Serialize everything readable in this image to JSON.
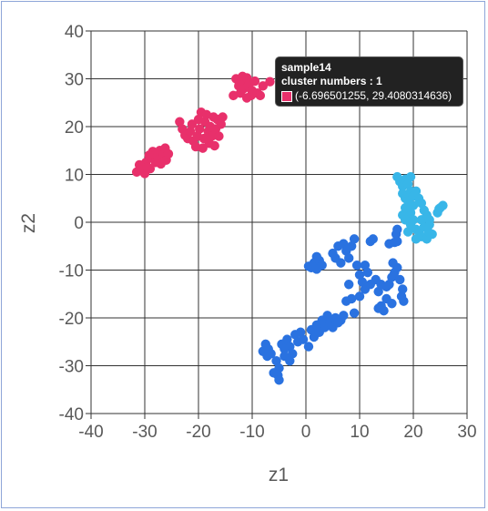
{
  "chart_data": {
    "type": "scatter",
    "xlabel": "z1",
    "ylabel": "z2",
    "xlim": [
      -40,
      30
    ],
    "ylim": [
      -40,
      40
    ],
    "xticks": [
      -40,
      -30,
      -20,
      -10,
      0,
      10,
      20,
      30
    ],
    "yticks": [
      -40,
      -30,
      -20,
      -10,
      0,
      10,
      20,
      30,
      40
    ],
    "grid": true,
    "series": [
      {
        "color": "#e8306b",
        "points": [
          [
            -31.5,
            10.5
          ],
          [
            -31,
            12
          ],
          [
            -30.5,
            11
          ],
          [
            -30,
            10.2
          ],
          [
            -29.8,
            12.5
          ],
          [
            -29.5,
            11.5
          ],
          [
            -29,
            11.2
          ],
          [
            -28.8,
            13.5
          ],
          [
            -28.5,
            14.8
          ],
          [
            -28,
            12.5
          ],
          [
            -27.6,
            13.6
          ],
          [
            -27.2,
            15
          ],
          [
            -27,
            12.2
          ],
          [
            -26.5,
            14.2
          ],
          [
            -26.2,
            15.5
          ],
          [
            -26,
            13
          ],
          [
            -25.6,
            14.3
          ],
          [
            -29.2,
            14
          ],
          [
            -23.5,
            21
          ],
          [
            -23,
            19.5
          ],
          [
            -22.5,
            18.2
          ],
          [
            -22,
            17.5
          ],
          [
            -21.5,
            19
          ],
          [
            -21.2,
            20.5
          ],
          [
            -21,
            17
          ],
          [
            -20.5,
            15.8
          ],
          [
            -20.2,
            18
          ],
          [
            -19.8,
            19.5
          ],
          [
            -19.5,
            23
          ],
          [
            -19.2,
            15.5
          ],
          [
            -19,
            17.5
          ],
          [
            -18.8,
            21
          ],
          [
            -18.5,
            22.5
          ],
          [
            -18.2,
            19
          ],
          [
            -18,
            16.5
          ],
          [
            -17.8,
            20
          ],
          [
            -17.5,
            18
          ],
          [
            -17.2,
            22
          ],
          [
            -17,
            16
          ],
          [
            -16.8,
            19.5
          ],
          [
            -16.5,
            21.5
          ],
          [
            -16.2,
            18
          ],
          [
            -15.8,
            20.5
          ],
          [
            -15.5,
            22
          ],
          [
            -18.5,
            17.5
          ],
          [
            -20,
            21.5
          ],
          [
            -13,
            30
          ],
          [
            -12.5,
            28.5
          ],
          [
            -12.2,
            27
          ],
          [
            -12,
            29.5
          ],
          [
            -11.8,
            30.5
          ],
          [
            -11.5,
            28
          ],
          [
            -11,
            30.2
          ],
          [
            -10.8,
            28.5
          ],
          [
            -10.5,
            29
          ],
          [
            -10.2,
            26.5
          ],
          [
            -10,
            27.5
          ],
          [
            -9.5,
            29.5
          ],
          [
            -9,
            27
          ],
          [
            -8.5,
            26.5
          ],
          [
            -8,
            28.5
          ],
          [
            -13.5,
            26.5
          ],
          [
            -11,
            26
          ],
          [
            -6.7,
            29.4
          ]
        ]
      },
      {
        "color": "#2a72e0",
        "points": [
          [
            -8,
            -27
          ],
          [
            -7.5,
            -25.5
          ],
          [
            -7.2,
            -28
          ],
          [
            -7,
            -26.5
          ],
          [
            -6.5,
            -27.5
          ],
          [
            -5.5,
            -29
          ],
          [
            -5,
            -30.5
          ],
          [
            -5.2,
            -32
          ],
          [
            -5,
            -33
          ],
          [
            -4.5,
            -25.5
          ],
          [
            -4,
            -28
          ],
          [
            -3.5,
            -24.5
          ],
          [
            -3,
            -26
          ],
          [
            -2.5,
            -27.5
          ],
          [
            -2,
            -23.5
          ],
          [
            -1.5,
            -25
          ],
          [
            -1,
            -23
          ],
          [
            -0.5,
            -24.5
          ],
          [
            0.5,
            -26
          ],
          [
            1,
            -22.5
          ],
          [
            1.5,
            -24
          ],
          [
            2,
            -21.5
          ],
          [
            2.5,
            -23
          ],
          [
            3,
            -20.5
          ],
          [
            3.5,
            -22
          ],
          [
            4,
            -19.5
          ],
          [
            4.5,
            -21
          ],
          [
            5,
            -22
          ],
          [
            5.5,
            -20
          ],
          [
            6,
            -21
          ],
          [
            6.5,
            -20.5
          ],
          [
            7,
            -19.5
          ],
          [
            -4,
            -26.5
          ],
          [
            -3,
            -29
          ],
          [
            -6,
            -31.5
          ],
          [
            0.5,
            -9.2
          ],
          [
            1,
            -9.5
          ],
          [
            1.5,
            -8.5
          ],
          [
            2,
            -9.8
          ],
          [
            2.5,
            -8
          ],
          [
            2,
            -7.2
          ],
          [
            3,
            -9
          ],
          [
            5,
            -6.5
          ],
          [
            5.5,
            -7.5
          ],
          [
            6,
            -5
          ],
          [
            6.5,
            -8.5
          ],
          [
            7,
            -4.5
          ],
          [
            7.5,
            -6
          ],
          [
            8,
            -7.5
          ],
          [
            8.5,
            -5
          ],
          [
            9,
            -3.5
          ],
          [
            9.5,
            -9
          ],
          [
            10,
            -11
          ],
          [
            10.5,
            -12.5
          ],
          [
            11,
            -14
          ],
          [
            11.5,
            -10.5
          ],
          [
            12,
            -4
          ],
          [
            12.5,
            -3.5
          ],
          [
            13,
            -12
          ],
          [
            13.5,
            -14.5
          ],
          [
            14,
            -17.5
          ],
          [
            14.5,
            -18.5
          ],
          [
            15,
            -16
          ],
          [
            15.5,
            -13
          ],
          [
            16,
            -11.5
          ],
          [
            16.5,
            -10.5
          ],
          [
            17,
            -9.5
          ],
          [
            17.5,
            -12
          ],
          [
            18,
            -14
          ],
          [
            18.2,
            -16.5
          ],
          [
            17.8,
            -15.5
          ],
          [
            16.2,
            -8.5
          ],
          [
            15.5,
            -4.5
          ],
          [
            16.5,
            -4.2
          ],
          [
            17,
            -4
          ],
          [
            16.8,
            -2.5
          ],
          [
            17,
            -1.5
          ],
          [
            8,
            -13
          ],
          [
            7.5,
            -16.5
          ],
          [
            8.5,
            -16
          ],
          [
            9,
            -19
          ],
          [
            10,
            -15.5
          ],
          [
            12,
            -13
          ],
          [
            14,
            -13
          ],
          [
            13.5,
            -18
          ],
          [
            15,
            -13.5
          ],
          [
            16,
            -17
          ],
          [
            11,
            -9
          ]
        ]
      },
      {
        "color": "#38b6e8",
        "points": [
          [
            17,
            9.5
          ],
          [
            17.5,
            8.5
          ],
          [
            18,
            7.5
          ],
          [
            18.5,
            9
          ],
          [
            19,
            8
          ],
          [
            19.5,
            9.5
          ],
          [
            18,
            6
          ],
          [
            18.5,
            5
          ],
          [
            19,
            4.5
          ],
          [
            19.5,
            6.5
          ],
          [
            20,
            5.5
          ],
          [
            20.5,
            6.5
          ],
          [
            21,
            5
          ],
          [
            21.5,
            4
          ],
          [
            19.5,
            2
          ],
          [
            19,
            1
          ],
          [
            18.5,
            0.5
          ],
          [
            18,
            1.5
          ],
          [
            19.5,
            -0.5
          ],
          [
            20,
            0.5
          ],
          [
            20.5,
            -1.5
          ],
          [
            21,
            -2
          ],
          [
            21.5,
            0.5
          ],
          [
            22,
            -1
          ],
          [
            22.5,
            1.5
          ],
          [
            23,
            -0.5
          ],
          [
            23,
            0.5
          ],
          [
            23.5,
            -2.5
          ],
          [
            20.5,
            -3.5
          ],
          [
            21.5,
            -3
          ],
          [
            22.5,
            -3.5
          ],
          [
            24.5,
            2
          ],
          [
            25,
            3
          ],
          [
            25.5,
            3.5
          ],
          [
            24.8,
            2.8
          ],
          [
            18.5,
            3
          ],
          [
            20,
            3.5
          ],
          [
            22,
            2.5
          ],
          [
            19,
            -2
          ],
          [
            22.8,
            -2
          ]
        ]
      }
    ]
  },
  "tooltip": {
    "title": "sample14",
    "cluster_line": "cluster numbers : 1",
    "coords": "(-6.696501255, 29.4080314636)",
    "swatch_color": "#e8306b"
  }
}
